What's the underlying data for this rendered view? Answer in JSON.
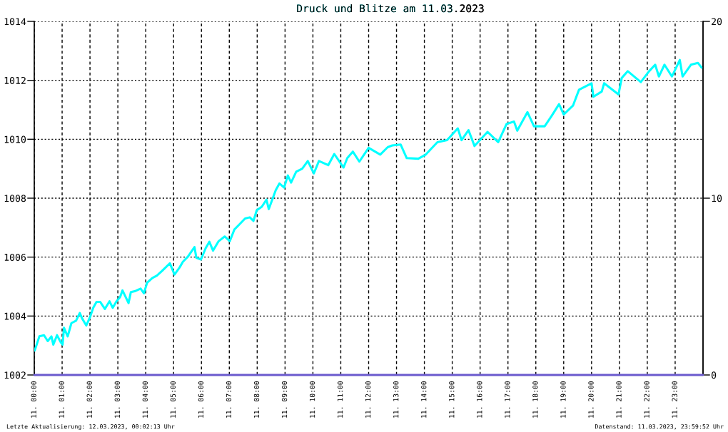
{
  "chart_data": {
    "type": "line",
    "title": "Druck und Blitze am 11.03.2023",
    "x": [
      "2023-03-11T00:01",
      "2023-03-11T00:11",
      "2023-03-11T00:21",
      "2023-03-11T00:29",
      "2023-03-11T00:37",
      "2023-03-11T00:41",
      "2023-03-11T00:49",
      "2023-03-11T00:57",
      "2023-03-11T01:01",
      "2023-03-11T01:04",
      "2023-03-11T01:12",
      "2023-03-11T01:20",
      "2023-03-11T01:30",
      "2023-03-11T01:38",
      "2023-03-11T01:43",
      "2023-03-11T01:52",
      "2023-03-11T02:00",
      "2023-03-11T02:07",
      "2023-03-11T02:14",
      "2023-03-11T02:22",
      "2023-03-11T02:32",
      "2023-03-11T02:42",
      "2023-03-11T02:49",
      "2023-03-11T02:57",
      "2023-03-11T03:05",
      "2023-03-11T03:10",
      "2023-03-11T03:23",
      "2023-03-11T03:28",
      "2023-03-11T03:38",
      "2023-03-11T03:49",
      "2023-03-11T03:56",
      "2023-03-11T04:03",
      "2023-03-11T04:14",
      "2023-03-11T04:24",
      "2023-03-11T04:35",
      "2023-03-11T04:52",
      "2023-03-11T05:02",
      "2023-03-11T05:13",
      "2023-03-11T05:20",
      "2023-03-11T05:31",
      "2023-03-11T05:45",
      "2023-03-11T05:49",
      "2023-03-11T05:59",
      "2023-03-11T06:09",
      "2023-03-11T06:17",
      "2023-03-11T06:25",
      "2023-03-11T06:37",
      "2023-03-11T06:50",
      "2023-03-11T07:01",
      "2023-03-11T07:11",
      "2023-03-11T07:21",
      "2023-03-11T07:34",
      "2023-03-11T07:44",
      "2023-03-11T07:52",
      "2023-03-11T07:59",
      "2023-03-11T08:10",
      "2023-03-11T08:20",
      "2023-03-11T08:25",
      "2023-03-11T08:40",
      "2023-03-11T08:48",
      "2023-03-11T08:58",
      "2023-03-11T09:06",
      "2023-03-11T09:13",
      "2023-03-11T09:24",
      "2023-03-11T09:37",
      "2023-03-11T09:49",
      "2023-03-11T10:02",
      "2023-03-11T10:13",
      "2023-03-11T10:33",
      "2023-03-11T10:46",
      "2023-03-11T11:06",
      "2023-03-11T11:14",
      "2023-03-11T11:26",
      "2023-03-11T11:40",
      "2023-03-11T12:00",
      "2023-03-11T12:25",
      "2023-03-11T12:41",
      "2023-03-11T12:51",
      "2023-03-11T13:09",
      "2023-03-11T13:22",
      "2023-03-11T13:47",
      "2023-03-11T14:03",
      "2023-03-11T14:28",
      "2023-03-11T14:49",
      "2023-03-11T15:12",
      "2023-03-11T15:20",
      "2023-03-11T15:35",
      "2023-03-11T15:48",
      "2023-03-11T16:16",
      "2023-03-11T16:39",
      "2023-03-11T16:57",
      "2023-03-11T17:13",
      "2023-03-11T17:20",
      "2023-03-11T17:42",
      "2023-03-11T17:56",
      "2023-03-11T18:19",
      "2023-03-11T18:34",
      "2023-03-11T18:50",
      "2023-03-11T19:00",
      "2023-03-11T19:20",
      "2023-03-11T19:33",
      "2023-03-11T20:00",
      "2023-03-11T20:04",
      "2023-03-11T20:22",
      "2023-03-11T20:27",
      "2023-03-11T20:58",
      "2023-03-11T21:05",
      "2023-03-11T21:18",
      "2023-03-11T21:46",
      "2023-03-11T22:04",
      "2023-03-11T22:17",
      "2023-03-11T22:25",
      "2023-03-11T22:37",
      "2023-03-11T22:53",
      "2023-03-11T23:10",
      "2023-03-11T23:16",
      "2023-03-11T23:34",
      "2023-03-11T23:49",
      "2023-03-11T23:57"
    ],
    "series": [
      {
        "color": "#00ffff",
        "values": [
          1002.83,
          1003.31,
          1003.35,
          1003.15,
          1003.31,
          1003.03,
          1003.35,
          1003.11,
          1003.03,
          1003.6,
          1003.31,
          1003.76,
          1003.84,
          1004.1,
          1003.92,
          1003.68,
          1003.96,
          1004.28,
          1004.48,
          1004.48,
          1004.24,
          1004.5,
          1004.28,
          1004.5,
          1004.65,
          1004.87,
          1004.44,
          1004.81,
          1004.85,
          1004.93,
          1004.77,
          1005.13,
          1005.29,
          1005.37,
          1005.53,
          1005.79,
          1005.41,
          1005.65,
          1005.84,
          1006.02,
          1006.34,
          1005.98,
          1005.92,
          1006.3,
          1006.52,
          1006.22,
          1006.54,
          1006.7,
          1006.54,
          1006.94,
          1007.1,
          1007.31,
          1007.35,
          1007.23,
          1007.59,
          1007.71,
          1007.95,
          1007.63,
          1008.27,
          1008.5,
          1008.36,
          1008.77,
          1008.53,
          1008.9,
          1009.0,
          1009.26,
          1008.84,
          1009.26,
          1009.12,
          1009.5,
          1009.04,
          1009.36,
          1009.58,
          1009.24,
          1009.71,
          1009.48,
          1009.73,
          1009.79,
          1009.82,
          1009.36,
          1009.34,
          1009.48,
          1009.9,
          1009.97,
          1010.37,
          1009.97,
          1010.31,
          1009.77,
          1010.25,
          1009.9,
          1010.52,
          1010.6,
          1010.29,
          1010.92,
          1010.44,
          1010.44,
          1010.79,
          1011.19,
          1010.84,
          1011.14,
          1011.68,
          1011.9,
          1011.44,
          1011.62,
          1011.9,
          1011.52,
          1012.08,
          1012.31,
          1011.94,
          1012.31,
          1012.53,
          1012.13,
          1012.53,
          1012.13,
          1012.69,
          1012.13,
          1012.53,
          1012.59,
          1012.43
        ]
      },
      {
        "color": "#6a5acd",
        "axis": "y2",
        "x": [
          "2023-03-11T00:00",
          "2023-03-12T00:00"
        ],
        "values": [
          0,
          0
        ]
      }
    ],
    "xlim": [
      "2023-03-11T00:00",
      "2023-03-12T00:00"
    ],
    "xticks": [
      {
        "value": "2023-03-11T00:00",
        "label": "11. 00:00"
      },
      {
        "value": "2023-03-11T01:00",
        "label": "11. 01:00"
      },
      {
        "value": "2023-03-11T02:00",
        "label": "11. 02:00"
      },
      {
        "value": "2023-03-11T03:00",
        "label": "11. 03:00"
      },
      {
        "value": "2023-03-11T04:00",
        "label": "11. 04:00"
      },
      {
        "value": "2023-03-11T05:00",
        "label": "11. 05:00"
      },
      {
        "value": "2023-03-11T06:00",
        "label": "11. 06:00"
      },
      {
        "value": "2023-03-11T07:00",
        "label": "11. 07:00"
      },
      {
        "value": "2023-03-11T08:00",
        "label": "11. 08:00"
      },
      {
        "value": "2023-03-11T09:00",
        "label": "11. 09:00"
      },
      {
        "value": "2023-03-11T10:00",
        "label": "11. 10:00"
      },
      {
        "value": "2023-03-11T11:00",
        "label": "11. 11:00"
      },
      {
        "value": "2023-03-11T12:00",
        "label": "11. 12:00"
      },
      {
        "value": "2023-03-11T13:00",
        "label": "11. 13:00"
      },
      {
        "value": "2023-03-11T14:00",
        "label": "11. 14:00"
      },
      {
        "value": "2023-03-11T15:00",
        "label": "11. 15:00"
      },
      {
        "value": "2023-03-11T16:00",
        "label": "11. 16:00"
      },
      {
        "value": "2023-03-11T17:00",
        "label": "11. 17:00"
      },
      {
        "value": "2023-03-11T18:00",
        "label": "11. 18:00"
      },
      {
        "value": "2023-03-11T19:00",
        "label": "11. 19:00"
      },
      {
        "value": "2023-03-11T20:00",
        "label": "11. 20:00"
      },
      {
        "value": "2023-03-11T21:00",
        "label": "11. 21:00"
      },
      {
        "value": "2023-03-11T22:00",
        "label": "11. 22:00"
      },
      {
        "value": "2023-03-11T23:00",
        "label": "11. 23:00"
      }
    ],
    "ylim": [
      1002,
      1014
    ],
    "yticks": [
      1002,
      1004,
      1006,
      1008,
      1010,
      1012,
      1014
    ],
    "y2lim": [
      0,
      20
    ],
    "y2ticks": [
      0,
      10,
      20
    ],
    "grid": true,
    "annotations": [
      "Letzte Aktualisierung: 12.03.2023, 00:02:13 Uhr",
      "Datenstand: 11.03.2023, 23:59:52 Uhr"
    ]
  }
}
